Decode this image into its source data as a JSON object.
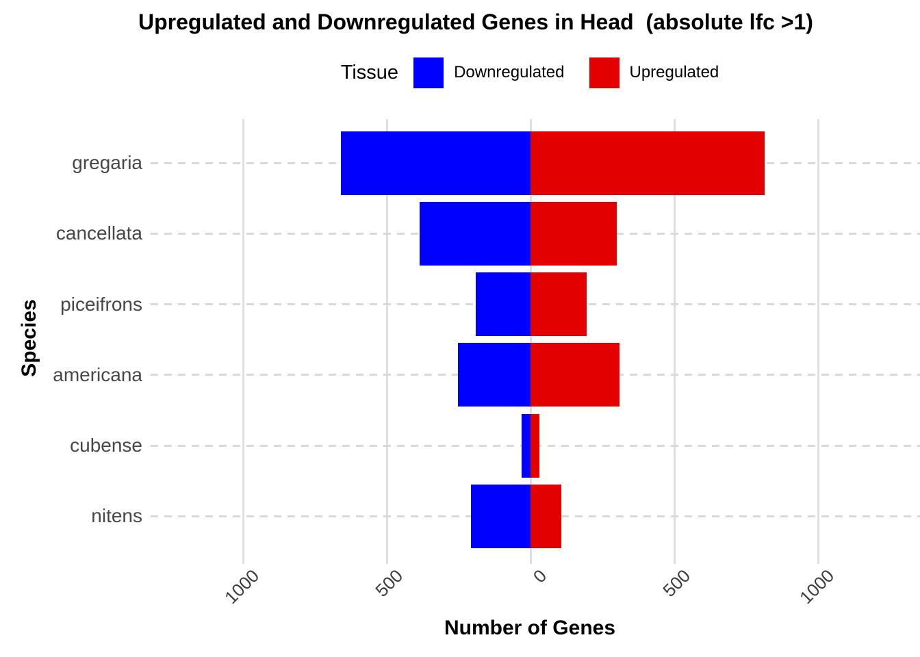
{
  "title": "Upregulated and Downregulated Genes in Head  (absolute lfc >1)",
  "legend": {
    "title": "Tissue",
    "items": [
      {
        "label": "Downregulated",
        "color": "#0000FF"
      },
      {
        "label": "Upregulated",
        "color": "#E30000"
      }
    ]
  },
  "axes": {
    "x_title": "Number of Genes",
    "y_title": "Species",
    "x_tick_labels": [
      "1000",
      "500",
      "0",
      "500",
      "1000"
    ],
    "x_tick_values": [
      -1000,
      -500,
      0,
      500,
      1000
    ]
  },
  "chart_data": {
    "type": "bar",
    "orientation": "horizontal-diverging",
    "title": "Upregulated and Downregulated Genes in Head  (absolute lfc >1)",
    "xlabel": "Number of Genes",
    "ylabel": "Species",
    "categories": [
      "gregaria",
      "cancellata",
      "piceifrons",
      "americana",
      "cubense",
      "nitens"
    ],
    "series": [
      {
        "name": "Downregulated",
        "color": "#0000FF",
        "values": [
          -660,
          -385,
          -190,
          -252,
          -32,
          -208
        ]
      },
      {
        "name": "Upregulated",
        "color": "#E30000",
        "values": [
          815,
          300,
          195,
          310,
          32,
          107
        ]
      }
    ],
    "xlim": [
      -1320,
      1355
    ],
    "x_ticks": [
      -1000,
      -500,
      0,
      500,
      1000
    ],
    "grid": "vertical solid major lines; horizontal dashed lines at each category",
    "legend_position": "top-center"
  }
}
